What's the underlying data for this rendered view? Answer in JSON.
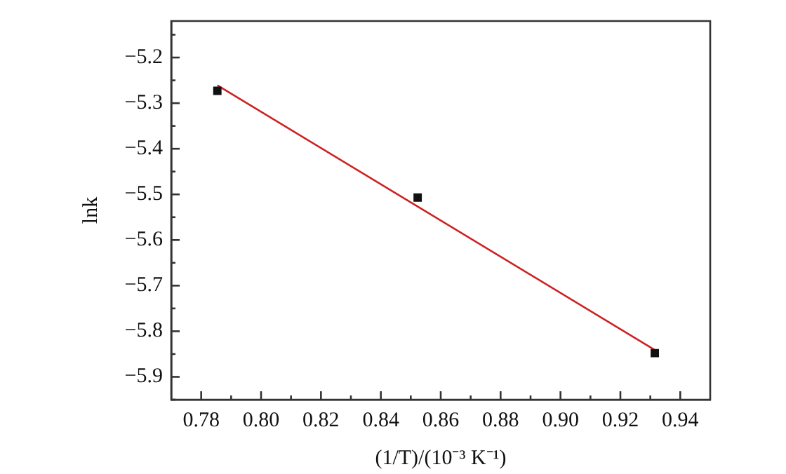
{
  "chart_data": {
    "type": "scatter",
    "xlabel": "(1/T)/(10⁻³ K⁻¹)",
    "ylabel": "lnk",
    "xlim": [
      0.77,
      0.95
    ],
    "ylim": [
      -5.95,
      -5.12
    ],
    "xticks": [
      0.78,
      {
        "value": 0.79,
        "label": null
      },
      {
        "value": 0.8,
        "label": "0.80"
      },
      {
        "value": 0.81,
        "label": null
      },
      0.82,
      {
        "value": 0.83,
        "label": null
      },
      0.84,
      {
        "value": 0.85,
        "label": null
      },
      0.86,
      {
        "value": 0.87,
        "label": null
      },
      0.88,
      {
        "value": 0.89,
        "label": null
      },
      {
        "value": 0.9,
        "label": "0.90"
      },
      {
        "value": 0.91,
        "label": null
      },
      0.92,
      {
        "value": 0.93,
        "label": null
      },
      0.94
    ],
    "yticks": [
      {
        "value": -5.95,
        "label": null
      },
      -5.9,
      {
        "value": -5.85,
        "label": null
      },
      -5.8,
      {
        "value": -5.75,
        "label": null
      },
      -5.7,
      {
        "value": -5.65,
        "label": null
      },
      -5.6,
      {
        "value": -5.55,
        "label": null
      },
      -5.5,
      {
        "value": -5.45,
        "label": null
      },
      -5.4,
      {
        "value": -5.35,
        "label": null
      },
      -5.3,
      {
        "value": -5.25,
        "label": null
      },
      -5.2,
      {
        "value": -5.15,
        "label": null
      }
    ],
    "grid": false,
    "legend": false,
    "series": [
      {
        "color": "#111111",
        "marker": "square",
        "x": [
          0.7854,
          0.8523,
          0.9315
        ],
        "values": [
          -5.273,
          -5.507,
          -5.848
        ]
      },
      {
        "type": "line",
        "color": "#cc2222",
        "marker": "none",
        "line_style": "solid",
        "x": [
          0.7854,
          0.9315
        ],
        "values": [
          -5.261,
          -5.841
        ]
      }
    ]
  }
}
